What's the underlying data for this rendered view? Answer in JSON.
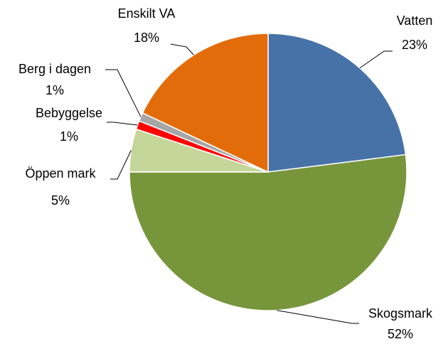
{
  "chart_data": {
    "type": "pie",
    "categories": [
      "Vatten",
      "Skogsmark",
      "Öppen mark",
      "Bebyggelse",
      "Berg i dagen",
      "Enskilt VA"
    ],
    "values": [
      23,
      52,
      5,
      1,
      1,
      18
    ],
    "value_labels": [
      "23%",
      "52%",
      "5%",
      "1%",
      "1%",
      "18%"
    ],
    "colors": [
      "#4672a8",
      "#77963c",
      "#c5d69b",
      "#ff0000",
      "#a6a6a6",
      "#e36c0a"
    ]
  }
}
